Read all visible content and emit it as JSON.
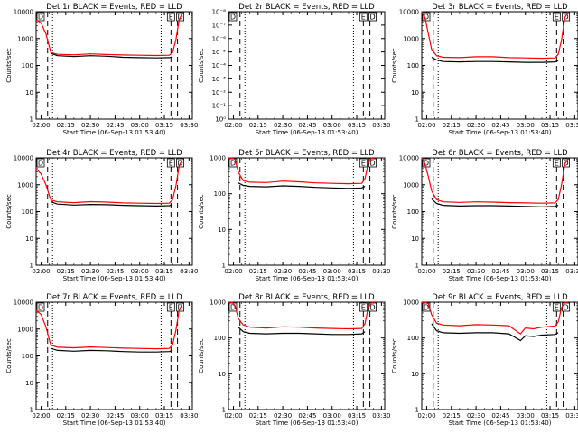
{
  "figure": {
    "panels": [
      {
        "title": "Det 1r BLACK = Events, RED = LLD",
        "ylabel": "Counts/sec",
        "xlabel": "Start Time (06-Sep-13 01:53:40)",
        "yticks": [
          "1",
          "10",
          "100",
          "1000",
          "10000"
        ],
        "xticks": [
          "02:00",
          "02:15",
          "02:30",
          "02:45",
          "03:00",
          "03:15",
          "03:30"
        ],
        "markers": {
          "left": "D",
          "right1": "E",
          "right2": "D"
        }
      },
      {
        "title": "Det 2r BLACK = Events, RED = LLD",
        "ylabel": "Counts/sec",
        "xlabel": "Start Time (06-Sep-13 01:53:40)",
        "yticks": [
          "10⁰",
          "10⁻¹",
          "10⁻²",
          "10⁻³",
          "10⁻⁴",
          "10⁻⁵",
          "10⁻⁶",
          "10⁻⁷",
          "10⁻⁸"
        ],
        "xticks": [
          "02:00",
          "02:15",
          "02:30",
          "02:45",
          "03:00",
          "03:15",
          "03:30"
        ],
        "markers": {
          "left": "D",
          "right1": "E",
          "right2": "D"
        }
      },
      {
        "title": "Det 3r BLACK = Events, RED = LLD",
        "ylabel": "Counts/sec",
        "xlabel": "Start Time (06-Sep-13 01:53:40)",
        "yticks": [
          "1",
          "10",
          "100",
          "1000",
          "10000"
        ],
        "xticks": [
          "02:00",
          "02:15",
          "02:30",
          "02:45",
          "03:00",
          "03:15",
          "03:30"
        ],
        "markers": {
          "left": "D",
          "right1": "E",
          "right2": "D"
        }
      },
      {
        "title": "Det 4r BLACK = Events, RED = LLD",
        "ylabel": "Counts/sec",
        "xlabel": "Start Time (06-Sep-13 01:53:40)",
        "yticks": [
          "1",
          "10",
          "100",
          "1000",
          "10000"
        ],
        "xticks": [
          "02:00",
          "02:15",
          "02:30",
          "02:45",
          "03:00",
          "03:15",
          "03:30"
        ],
        "markers": {
          "left": "D",
          "right1": "E",
          "right2": "D"
        }
      },
      {
        "title": "Det 5r BLACK = Events, RED = LLD",
        "ylabel": "Counts/sec",
        "xlabel": "Start Time (06-Sep-13 01:53:40)",
        "yticks": [
          "1",
          "10",
          "100",
          "1000"
        ],
        "xticks": [
          "02:00",
          "02:15",
          "02:30",
          "02:45",
          "03:00",
          "03:15",
          "03:30"
        ],
        "markers": {
          "left": "D",
          "right1": "E",
          "right2": "D"
        }
      },
      {
        "title": "Det 6r BLACK = Events, RED = LLD",
        "ylabel": "Counts/sec",
        "xlabel": "Start Time (06-Sep-13 01:53:40)",
        "yticks": [
          "1",
          "10",
          "100",
          "1000",
          "10000"
        ],
        "xticks": [
          "02:00",
          "02:15",
          "02:30",
          "02:45",
          "03:00",
          "03:15",
          "03:30"
        ],
        "markers": {
          "left": "D",
          "right1": "E",
          "right2": "D"
        }
      },
      {
        "title": "Det 7r BLACK = Events, RED = LLD",
        "ylabel": "Counts/sec",
        "xlabel": "Start Time (06-Sep-13 01:53:40)",
        "yticks": [
          "1",
          "10",
          "100",
          "1000",
          "10000"
        ],
        "xticks": [
          "02:00",
          "02:15",
          "02:30",
          "02:45",
          "03:00",
          "03:15",
          "03:30"
        ],
        "markers": {
          "left": "D",
          "right1": "E",
          "right2": "D"
        }
      },
      {
        "title": "Det 8r BLACK = Events, RED = LLD",
        "ylabel": "Counts/sec",
        "xlabel": "Start Time (06-Sep-13 01:53:40)",
        "yticks": [
          "1",
          "10",
          "100",
          "1000"
        ],
        "xticks": [
          "02:00",
          "02:15",
          "02:30",
          "02:45",
          "03:00",
          "03:15",
          "03:30"
        ],
        "markers": {
          "left": "D",
          "right1": "E",
          "right2": "D"
        }
      },
      {
        "title": "Det 9r BLACK = Events, RED = LLD",
        "ylabel": "Counts/sec",
        "xlabel": "Start Time (06-Sep-13 01:53:40)",
        "yticks": [
          "1",
          "10",
          "100",
          "1000"
        ],
        "xticks": [
          "02:00",
          "02:15",
          "02:30",
          "02:45",
          "03:00",
          "03:15",
          "03:30"
        ],
        "markers": {
          "left": "D",
          "right1": "E",
          "right2": "D"
        }
      }
    ]
  },
  "colors": {
    "events": "#000000",
    "lld": "#ff0000",
    "axes": "#000000",
    "background": "#ffffff"
  },
  "chart_data": [
    {
      "type": "line",
      "title": "Det 1r BLACK = Events, RED = LLD",
      "xlabel": "Start Time (06-Sep-13 01:53:40)",
      "ylabel": "Counts/sec",
      "yscale": "log",
      "ylim": [
        1,
        10000
      ],
      "xlim": [
        "01:57",
        "03:32"
      ],
      "x": [
        "01:57",
        "02:00",
        "02:03",
        "02:05",
        "02:06",
        "02:10",
        "02:20",
        "02:30",
        "02:40",
        "02:50",
        "03:00",
        "03:10",
        "03:18",
        "03:20",
        "03:22",
        "03:24",
        "03:26"
      ],
      "series": [
        {
          "name": "Events",
          "color": "#000000",
          "values": [
            null,
            null,
            null,
            null,
            280,
            230,
            215,
            230,
            220,
            200,
            195,
            190,
            195,
            210,
            null,
            null,
            null
          ]
        },
        {
          "name": "LLD",
          "color": "#ff0000",
          "values": [
            5000,
            3800,
            1500,
            500,
            300,
            260,
            250,
            270,
            255,
            245,
            240,
            235,
            240,
            300,
            900,
            5000,
            9000
          ]
        }
      ],
      "vlines_dashed": [
        "02:04",
        "03:19",
        "03:23"
      ],
      "vlines_dotted": [
        "02:07",
        "03:13"
      ]
    },
    {
      "type": "line",
      "title": "Det 2r BLACK = Events, RED = LLD",
      "xlabel": "Start Time (06-Sep-13 01:53:40)",
      "ylabel": "Counts/sec",
      "yscale": "log",
      "ylim": [
        1e-08,
        1
      ],
      "xlim": [
        "01:57",
        "03:32"
      ],
      "x": [],
      "series": [],
      "vlines_dashed": [
        "02:04",
        "03:19",
        "03:23"
      ],
      "vlines_dotted": [
        "02:07",
        "03:13"
      ]
    },
    {
      "type": "line",
      "title": "Det 3r BLACK = Events, RED = LLD",
      "xlabel": "Start Time (06-Sep-13 01:53:40)",
      "ylabel": "Counts/sec",
      "yscale": "log",
      "ylim": [
        1,
        10000
      ],
      "xlim": [
        "01:57",
        "03:32"
      ],
      "x": [
        "01:57",
        "01:59",
        "02:01",
        "02:03",
        "02:06",
        "02:10",
        "02:20",
        "02:30",
        "02:40",
        "02:50",
        "03:00",
        "03:10",
        "03:18",
        "03:20",
        "03:22",
        "03:24",
        "03:26"
      ],
      "series": [
        {
          "name": "Events",
          "color": "#000000",
          "values": [
            null,
            null,
            null,
            200,
            160,
            140,
            135,
            140,
            140,
            135,
            130,
            130,
            135,
            150,
            null,
            null,
            null
          ]
        },
        {
          "name": "LLD",
          "color": "#ff0000",
          "values": [
            10000,
            6000,
            1500,
            400,
            230,
            200,
            195,
            210,
            210,
            195,
            190,
            185,
            190,
            260,
            900,
            6000,
            10000
          ]
        }
      ],
      "vlines_dashed": [
        "02:04",
        "03:19",
        "03:23"
      ],
      "vlines_dotted": [
        "02:07",
        "03:13"
      ]
    },
    {
      "type": "line",
      "title": "Det 4r BLACK = Events, RED = LLD",
      "xlabel": "Start Time (06-Sep-13 01:53:40)",
      "ylabel": "Counts/sec",
      "yscale": "log",
      "ylim": [
        1,
        10000
      ],
      "xlim": [
        "01:57",
        "03:32"
      ],
      "x": [
        "01:57",
        "02:00",
        "02:03",
        "02:05",
        "02:06",
        "02:10",
        "02:20",
        "02:30",
        "02:40",
        "02:50",
        "03:00",
        "03:10",
        "03:18",
        "03:20",
        "03:22",
        "03:24",
        "03:26"
      ],
      "series": [
        {
          "name": "Events",
          "color": "#000000",
          "values": [
            null,
            null,
            null,
            null,
            230,
            190,
            175,
            185,
            180,
            170,
            165,
            160,
            165,
            180,
            null,
            null,
            null
          ]
        },
        {
          "name": "LLD",
          "color": "#ff0000",
          "values": [
            4000,
            2500,
            1000,
            400,
            270,
            230,
            215,
            235,
            225,
            210,
            205,
            200,
            205,
            280,
            900,
            5000,
            9000
          ]
        }
      ],
      "vlines_dashed": [
        "02:04",
        "03:19",
        "03:23"
      ],
      "vlines_dotted": [
        "02:07",
        "03:13"
      ]
    },
    {
      "type": "line",
      "title": "Det 5r BLACK = Events, RED = LLD",
      "xlabel": "Start Time (06-Sep-13 01:53:40)",
      "ylabel": "Counts/sec",
      "yscale": "log",
      "ylim": [
        1,
        1000
      ],
      "xlim": [
        "01:57",
        "03:32"
      ],
      "x": [
        "01:57",
        "01:59",
        "02:01",
        "02:03",
        "02:06",
        "02:10",
        "02:20",
        "02:30",
        "02:40",
        "02:50",
        "03:00",
        "03:10",
        "03:18",
        "03:20",
        "03:22",
        "03:24",
        "03:26"
      ],
      "series": [
        {
          "name": "Events",
          "color": "#000000",
          "values": [
            null,
            null,
            null,
            200,
            170,
            160,
            155,
            165,
            160,
            150,
            145,
            140,
            145,
            160,
            null,
            null,
            null
          ]
        },
        {
          "name": "LLD",
          "color": "#ff0000",
          "values": [
            1000,
            1000,
            900,
            400,
            230,
            210,
            205,
            225,
            215,
            200,
            195,
            190,
            195,
            260,
            700,
            1000,
            1000
          ]
        }
      ],
      "vlines_dashed": [
        "02:04",
        "03:19",
        "03:23"
      ],
      "vlines_dotted": [
        "02:07",
        "03:13"
      ]
    },
    {
      "type": "line",
      "title": "Det 6r BLACK = Events, RED = LLD",
      "xlabel": "Start Time (06-Sep-13 01:53:40)",
      "ylabel": "Counts/sec",
      "yscale": "log",
      "ylim": [
        1,
        10000
      ],
      "xlim": [
        "01:57",
        "03:32"
      ],
      "x": [
        "01:57",
        "01:59",
        "02:01",
        "02:03",
        "02:06",
        "02:10",
        "02:20",
        "02:30",
        "02:40",
        "02:50",
        "03:00",
        "03:10",
        "03:18",
        "03:20",
        "03:22",
        "03:24",
        "03:26"
      ],
      "series": [
        {
          "name": "Events",
          "color": "#000000",
          "values": [
            null,
            null,
            null,
            300,
            200,
            170,
            160,
            165,
            165,
            160,
            155,
            150,
            155,
            170,
            null,
            null,
            null
          ]
        },
        {
          "name": "LLD",
          "color": "#ff0000",
          "values": [
            10000,
            6000,
            2000,
            600,
            280,
            230,
            220,
            230,
            225,
            215,
            210,
            205,
            210,
            280,
            1000,
            6000,
            9000
          ]
        }
      ],
      "vlines_dashed": [
        "02:04",
        "03:19",
        "03:23"
      ],
      "vlines_dotted": [
        "02:07",
        "03:13"
      ]
    },
    {
      "type": "line",
      "title": "Det 7r BLACK = Events, RED = LLD",
      "xlabel": "Start Time (06-Sep-13 01:53:40)",
      "ylabel": "Counts/sec",
      "yscale": "log",
      "ylim": [
        1,
        10000
      ],
      "xlim": [
        "01:57",
        "03:32"
      ],
      "x": [
        "01:57",
        "02:00",
        "02:03",
        "02:05",
        "02:06",
        "02:10",
        "02:20",
        "02:30",
        "02:40",
        "02:50",
        "03:00",
        "03:10",
        "03:18",
        "03:20",
        "03:22",
        "03:24",
        "03:26"
      ],
      "series": [
        {
          "name": "Events",
          "color": "#000000",
          "values": [
            null,
            null,
            null,
            null,
            190,
            160,
            150,
            160,
            155,
            145,
            140,
            140,
            145,
            160,
            null,
            null,
            null
          ]
        },
        {
          "name": "LLD",
          "color": "#ff0000",
          "values": [
            5000,
            3500,
            1200,
            400,
            250,
            210,
            200,
            215,
            205,
            195,
            190,
            185,
            190,
            260,
            900,
            5000,
            9000
          ]
        }
      ],
      "vlines_dashed": [
        "02:04",
        "03:19",
        "03:23"
      ],
      "vlines_dotted": [
        "02:07",
        "03:13"
      ]
    },
    {
      "type": "line",
      "title": "Det 8r BLACK = Events, RED = LLD",
      "xlabel": "Start Time (06-Sep-13 01:53:40)",
      "ylabel": "Counts/sec",
      "yscale": "log",
      "ylim": [
        1,
        1000
      ],
      "xlim": [
        "01:57",
        "03:32"
      ],
      "x": [
        "01:57",
        "01:59",
        "02:01",
        "02:03",
        "02:06",
        "02:10",
        "02:20",
        "02:30",
        "02:40",
        "02:50",
        "03:00",
        "03:10",
        "03:18",
        "03:20",
        "03:22",
        "03:24",
        "03:26"
      ],
      "series": [
        {
          "name": "Events",
          "color": "#000000",
          "values": [
            null,
            null,
            null,
            200,
            150,
            135,
            130,
            135,
            135,
            130,
            125,
            125,
            130,
            150,
            null,
            null,
            null
          ]
        },
        {
          "name": "LLD",
          "color": "#ff0000",
          "values": [
            1000,
            1000,
            800,
            350,
            230,
            200,
            190,
            205,
            200,
            190,
            185,
            180,
            185,
            250,
            700,
            1000,
            1000
          ]
        }
      ],
      "vlines_dashed": [
        "02:04",
        "03:19",
        "03:23"
      ],
      "vlines_dotted": [
        "02:07",
        "03:13"
      ]
    },
    {
      "type": "line",
      "title": "Det 9r BLACK = Events, RED = LLD",
      "xlabel": "Start Time (06-Sep-13 01:53:40)",
      "ylabel": "Counts/sec",
      "yscale": "log",
      "ylim": [
        1,
        1000
      ],
      "xlim": [
        "01:57",
        "03:32"
      ],
      "x": [
        "01:57",
        "01:59",
        "02:01",
        "02:03",
        "02:06",
        "02:10",
        "02:20",
        "02:30",
        "02:40",
        "02:50",
        "02:57",
        "03:00",
        "03:05",
        "03:10",
        "03:18",
        "03:20",
        "03:22",
        "03:24",
        "03:26"
      ],
      "series": [
        {
          "name": "Events",
          "color": "#000000",
          "values": [
            null,
            null,
            null,
            250,
            160,
            140,
            135,
            140,
            140,
            130,
            85,
            115,
            110,
            120,
            125,
            140,
            null,
            null,
            null
          ]
        },
        {
          "name": "LLD",
          "color": "#ff0000",
          "values": [
            1000,
            1000,
            900,
            450,
            260,
            230,
            220,
            235,
            230,
            220,
            130,
            190,
            180,
            200,
            215,
            280,
            700,
            1000,
            1000
          ]
        }
      ],
      "vlines_dashed": [
        "02:04",
        "03:19",
        "03:23"
      ],
      "vlines_dotted": [
        "02:07",
        "03:13"
      ]
    }
  ]
}
